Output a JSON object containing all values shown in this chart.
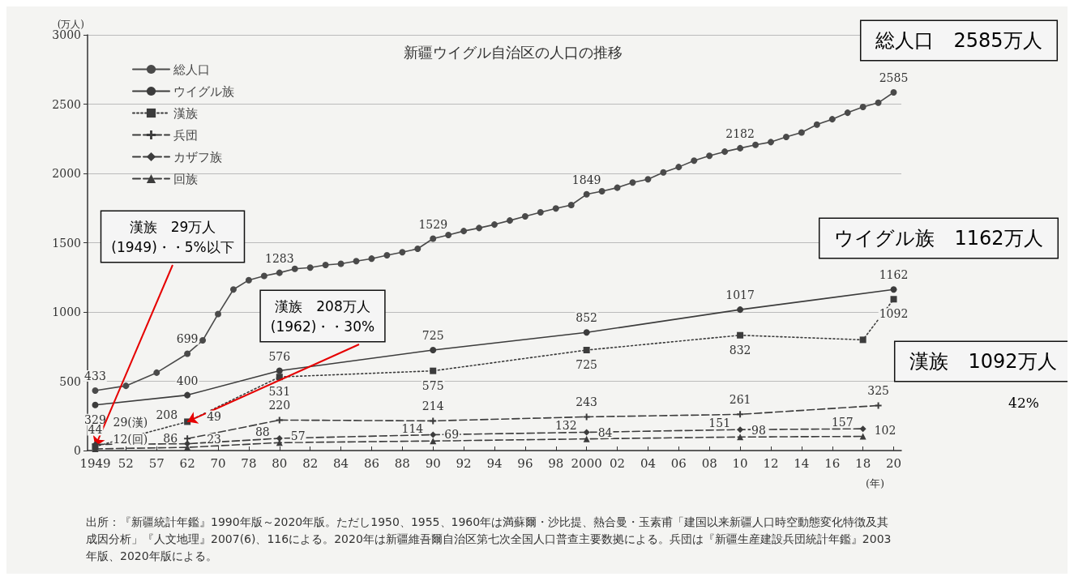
{
  "chart_data": {
    "type": "line",
    "title": "新疆ウイグル自治区の人口の推移",
    "ylabel": "(万人)",
    "xlabel": "(年)",
    "categories": [
      "1949",
      null,
      "52",
      null,
      "57",
      null,
      "62",
      null,
      "70",
      null,
      "78",
      null,
      "80",
      null,
      "82",
      null,
      "84",
      null,
      "86",
      null,
      "88",
      null,
      "90",
      null,
      "92",
      null,
      "94",
      null,
      "96",
      null,
      "98",
      null,
      "2000",
      null,
      "02",
      null,
      "04",
      null,
      "06",
      null,
      "08",
      null,
      "10",
      null,
      "12",
      null,
      "14",
      null,
      "16",
      null,
      "18",
      null,
      "20"
    ],
    "series": [
      {
        "name": "総人口",
        "color": "#4a4a4a",
        "marker": "circle",
        "line_style": "solid",
        "values": [
          433,
          null,
          467,
          null,
          562,
          null,
          699,
          795,
          985,
          1162,
          1230,
          1260,
          1283,
          1311,
          1320,
          1339,
          1348,
          1367,
          1385,
          1409,
          1431,
          1456,
          1529,
          1556,
          1584,
          1606,
          1631,
          1660,
          1690,
          1719,
          1747,
          1772,
          1849,
          1871,
          1897,
          1934,
          1958,
          2007,
          2046,
          2092,
          2127,
          2157,
          2182,
          2206,
          2226,
          2263,
          2295,
          2352,
          2391,
          2438,
          2480,
          2510,
          2585
        ],
        "value_labels": [
          "433",
          null,
          null,
          null,
          null,
          null,
          "699",
          null,
          null,
          null,
          null,
          null,
          "1283",
          null,
          null,
          null,
          null,
          null,
          null,
          null,
          null,
          null,
          "1529",
          null,
          null,
          null,
          null,
          null,
          null,
          null,
          null,
          null,
          "1849",
          null,
          null,
          null,
          null,
          null,
          null,
          null,
          null,
          null,
          "2182",
          null,
          null,
          null,
          null,
          null,
          null,
          null,
          null,
          null,
          "2585"
        ]
      },
      {
        "name": "ウイグル族",
        "color": "#3c3c3c",
        "marker": "circle",
        "line_style": "solid",
        "values": [
          329,
          null,
          null,
          null,
          null,
          null,
          400,
          null,
          null,
          null,
          null,
          null,
          576,
          null,
          null,
          null,
          null,
          null,
          null,
          null,
          null,
          null,
          725,
          null,
          null,
          null,
          null,
          null,
          null,
          null,
          null,
          null,
          852,
          null,
          null,
          null,
          null,
          null,
          null,
          null,
          null,
          null,
          1017,
          null,
          null,
          null,
          null,
          null,
          null,
          null,
          null,
          null,
          1162
        ],
        "value_labels": [
          "329",
          null,
          null,
          null,
          null,
          null,
          "400",
          null,
          null,
          null,
          null,
          null,
          "576",
          null,
          null,
          null,
          null,
          null,
          null,
          null,
          null,
          null,
          "725",
          null,
          null,
          null,
          null,
          null,
          null,
          null,
          null,
          null,
          "852",
          null,
          null,
          null,
          null,
          null,
          null,
          null,
          null,
          null,
          "1017",
          null,
          null,
          null,
          null,
          null,
          null,
          null,
          null,
          null,
          "1162"
        ]
      },
      {
        "name": "漢族",
        "color": "#3c3c3c",
        "marker": "square",
        "line_style": "dotted",
        "values": [
          29,
          null,
          null,
          null,
          null,
          null,
          208,
          null,
          null,
          null,
          null,
          null,
          531,
          null,
          null,
          null,
          null,
          null,
          null,
          null,
          null,
          null,
          575,
          null,
          null,
          null,
          null,
          null,
          null,
          null,
          null,
          null,
          725,
          null,
          null,
          null,
          null,
          null,
          null,
          null,
          null,
          null,
          832,
          null,
          null,
          null,
          null,
          null,
          null,
          null,
          799,
          null,
          1092
        ],
        "value_labels": [
          "29(漢)",
          null,
          null,
          null,
          null,
          null,
          "208",
          null,
          null,
          null,
          null,
          null,
          "531",
          null,
          null,
          null,
          null,
          null,
          null,
          null,
          null,
          null,
          "575",
          null,
          null,
          null,
          null,
          null,
          null,
          null,
          null,
          null,
          "725",
          null,
          null,
          null,
          null,
          null,
          null,
          null,
          null,
          null,
          "832",
          null,
          null,
          null,
          null,
          null,
          null,
          null,
          null,
          null,
          "1092"
        ]
      },
      {
        "name": "兵団",
        "color": "#3c3c3c",
        "marker": "cross",
        "line_style": "dashed",
        "values": [
          null,
          null,
          null,
          null,
          null,
          null,
          86,
          null,
          null,
          null,
          null,
          null,
          220,
          null,
          null,
          null,
          null,
          null,
          null,
          null,
          null,
          null,
          214,
          null,
          null,
          null,
          null,
          null,
          null,
          null,
          null,
          null,
          243,
          null,
          null,
          null,
          null,
          null,
          null,
          null,
          null,
          null,
          261,
          null,
          null,
          null,
          null,
          null,
          null,
          null,
          null,
          325,
          null
        ],
        "value_labels": [
          null,
          null,
          null,
          null,
          null,
          null,
          "86",
          null,
          null,
          null,
          null,
          null,
          "220",
          null,
          null,
          null,
          null,
          null,
          null,
          null,
          null,
          null,
          "214",
          null,
          null,
          null,
          null,
          null,
          null,
          null,
          null,
          null,
          "243",
          null,
          null,
          null,
          null,
          null,
          null,
          null,
          null,
          null,
          "261",
          null,
          null,
          null,
          null,
          null,
          null,
          null,
          null,
          "325",
          null
        ]
      },
      {
        "name": "カザフ族",
        "color": "#3c3c3c",
        "marker": "diamond",
        "line_style": "dashed",
        "values": [
          44,
          null,
          null,
          null,
          null,
          null,
          49,
          null,
          null,
          null,
          null,
          null,
          88,
          null,
          null,
          null,
          null,
          null,
          null,
          null,
          null,
          null,
          114,
          null,
          null,
          null,
          null,
          null,
          null,
          null,
          null,
          null,
          132,
          null,
          null,
          null,
          null,
          null,
          null,
          null,
          null,
          null,
          151,
          null,
          null,
          null,
          null,
          null,
          null,
          null,
          157,
          null,
          null
        ],
        "value_labels": [
          "44",
          null,
          null,
          null,
          null,
          null,
          "49",
          null,
          null,
          null,
          null,
          null,
          "88",
          null,
          null,
          null,
          null,
          null,
          null,
          null,
          null,
          null,
          "114",
          null,
          null,
          null,
          null,
          null,
          null,
          null,
          null,
          null,
          "132",
          null,
          null,
          null,
          null,
          null,
          null,
          null,
          null,
          null,
          "151",
          null,
          null,
          null,
          null,
          null,
          null,
          null,
          "157",
          null,
          null
        ]
      },
      {
        "name": "回族",
        "color": "#3c3c3c",
        "marker": "triangle",
        "line_style": "dashed",
        "values": [
          12,
          null,
          null,
          null,
          null,
          null,
          23,
          null,
          null,
          null,
          null,
          null,
          57,
          null,
          null,
          null,
          null,
          null,
          null,
          null,
          null,
          null,
          69,
          null,
          null,
          null,
          null,
          null,
          null,
          null,
          null,
          null,
          84,
          null,
          null,
          null,
          null,
          null,
          null,
          null,
          null,
          null,
          98,
          null,
          null,
          null,
          null,
          null,
          null,
          null,
          102,
          null,
          null
        ],
        "value_labels": [
          "12(回)",
          null,
          null,
          null,
          null,
          null,
          "23",
          null,
          null,
          null,
          null,
          null,
          "57",
          null,
          null,
          null,
          null,
          null,
          null,
          null,
          null,
          null,
          "69",
          null,
          null,
          null,
          null,
          null,
          null,
          null,
          null,
          null,
          "84",
          null,
          null,
          null,
          null,
          null,
          null,
          null,
          null,
          null,
          "98",
          null,
          null,
          null,
          null,
          null,
          null,
          null,
          "102",
          null,
          null
        ]
      }
    ],
    "ylim": [
      0,
      3000
    ],
    "yticks": [
      0,
      500,
      1000,
      1500,
      2000,
      2500,
      3000
    ],
    "grid": "y",
    "legend": "top left",
    "annotations": [
      {
        "text": "漢族　29万人\n(1949)・・5%以下",
        "x": "1949",
        "y": 29
      },
      {
        "text": "漢族　208万人\n(1962)・・30%",
        "x": "62",
        "y": 208
      },
      "総人口　2585万人",
      "ウイグル族　1162万人",
      "漢族　1092万人",
      "42%",
      "出所：『新疆統計年鑑』1990年版～2020年版。ただし1950、1955、1960年は満蘇爾・沙比提、熱合曼・玉素甫「建国以来新疆人口時空動態変化特徴及其成因分析」『人文地理』2007(6)、116による。2020年は新疆維吾爾自治区第七次全国人口普查主要数拠による。兵団は『新疆生産建設兵団統計年鑑』2003年版、2020年版による。"
    ]
  }
}
